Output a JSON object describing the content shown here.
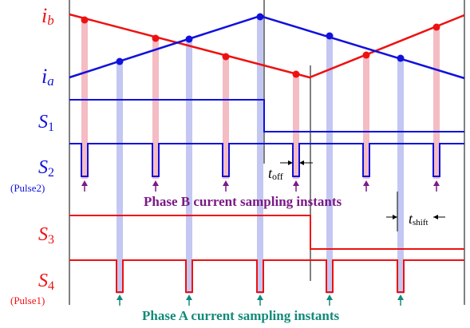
{
  "labels": {
    "ib_main": "i",
    "ib_sub": "b",
    "ia_main": "i",
    "ia_sub": "a",
    "s1_main": "S",
    "s1_sub": "1",
    "s2_main": "S",
    "s2_sub": "2",
    "s2_note": "(Pulse2)",
    "s3_main": "S",
    "s3_sub": "3",
    "s4_main": "S",
    "s4_sub": "4",
    "s4_note": "(Pulse1)",
    "toff_main": "t",
    "toff_sub": "off",
    "tshift_main": "t",
    "tshift_sub": "shift"
  },
  "captions": {
    "phase_b": "Phase B current sampling instants",
    "phase_a": "Phase A current sampling instants"
  },
  "colors": {
    "phase_b": "#ee1111",
    "phase_a": "#1111dd",
    "phase_b_band": "#f2b0b8",
    "phase_a_band": "#b8bdf0",
    "phase_b_caption": "#7a1a86",
    "phase_a_caption": "#128a7a",
    "phase_b_arrow": "#7a1a86",
    "phase_a_arrow": "#128a7a"
  }
}
